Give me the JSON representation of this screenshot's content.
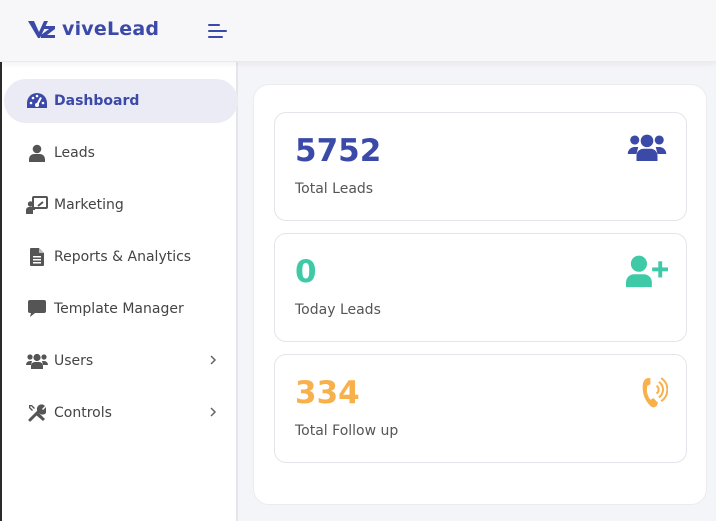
{
  "app": {
    "brand_name": "viveLead",
    "accent_color": "#3b4aa8"
  },
  "sidebar": {
    "items": [
      {
        "label": "Dashboard",
        "icon": "tachometer-icon",
        "active": true
      },
      {
        "label": "Leads",
        "icon": "user-icon"
      },
      {
        "label": "Marketing",
        "icon": "presentation-icon"
      },
      {
        "label": "Reports & Analytics",
        "icon": "document-icon"
      },
      {
        "label": "Template Manager",
        "icon": "comment-icon"
      },
      {
        "label": "Users",
        "icon": "users-icon",
        "has_submenu": true
      },
      {
        "label": "Controls",
        "icon": "tools-icon",
        "has_submenu": true
      }
    ]
  },
  "stats": [
    {
      "value": "5752",
      "label": "Total Leads",
      "color": "#3b4aa8",
      "icon": "users-icon"
    },
    {
      "value": "0",
      "label": "Today Leads",
      "color": "#3ec9a7",
      "icon": "user-plus-icon"
    },
    {
      "value": "334",
      "label": "Total Follow up",
      "color": "#f7b04a",
      "icon": "phone-volume-icon"
    }
  ]
}
